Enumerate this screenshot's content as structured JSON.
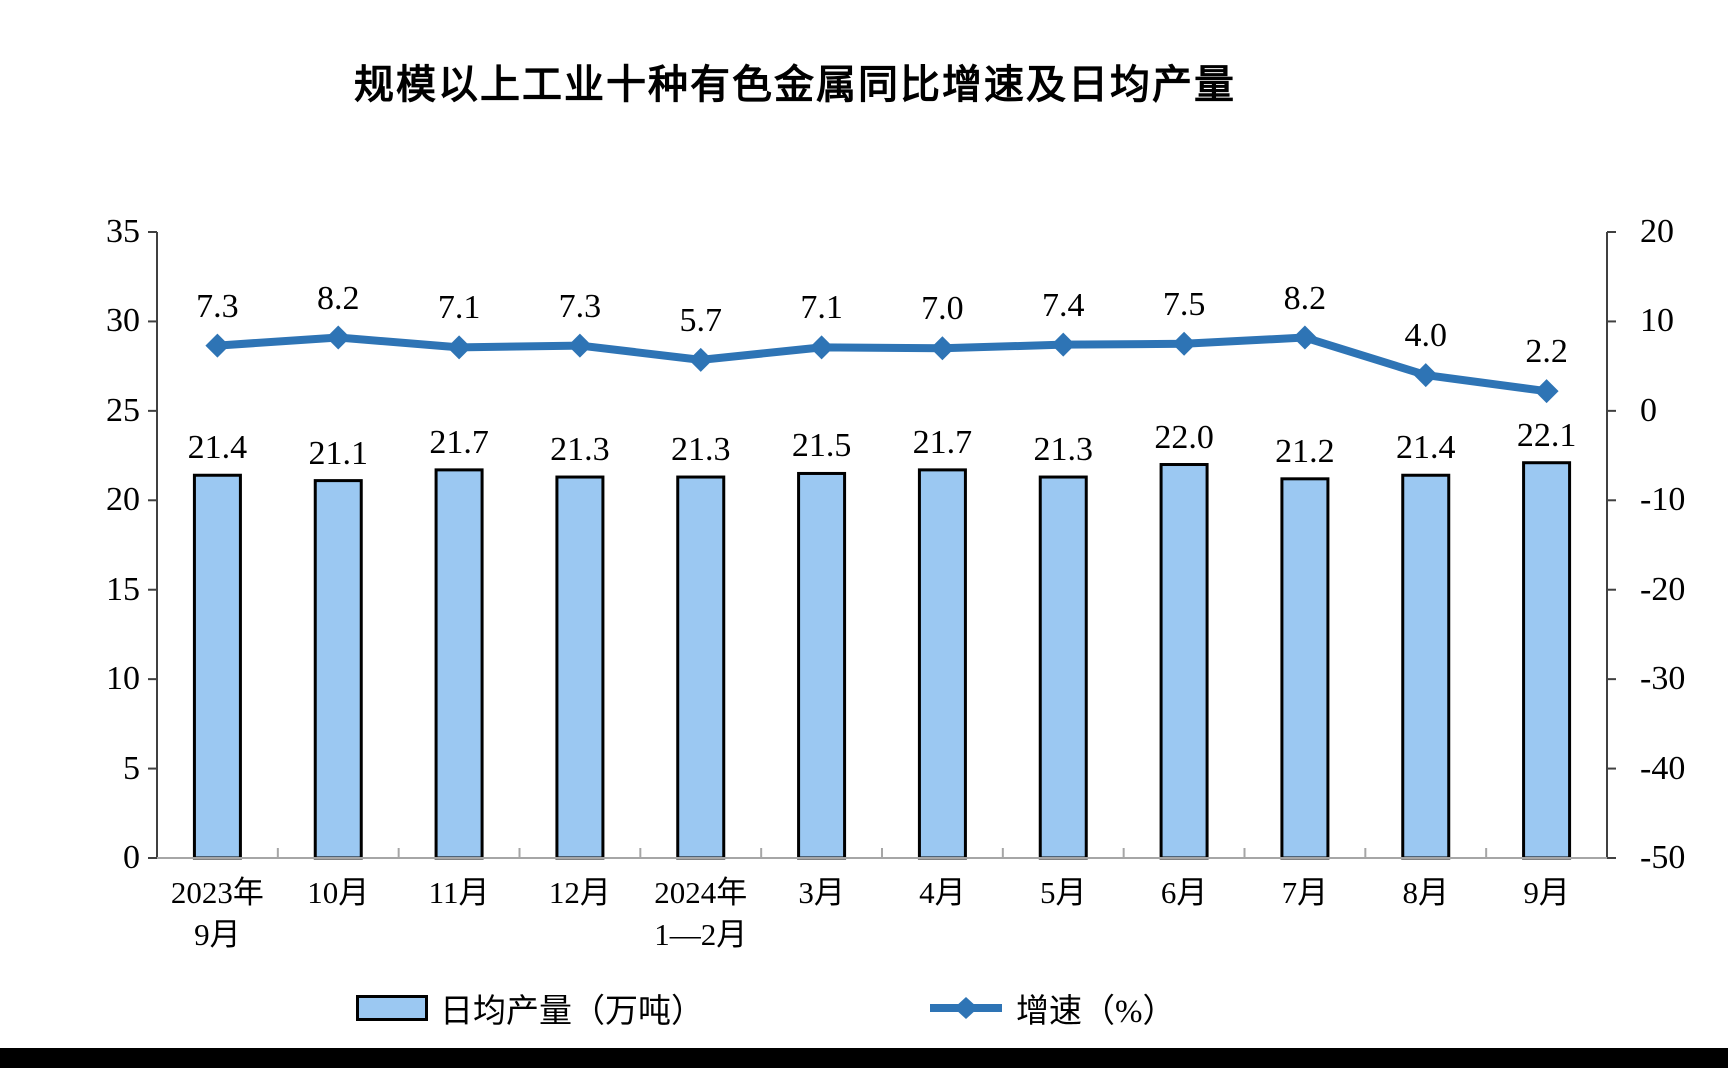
{
  "chart_data": {
    "type": "combo",
    "title": "规模以上工业十种有色金属同比增速及日均产量",
    "categories": [
      "2023年\n9月",
      "10月",
      "11月",
      "12月",
      "2024年\n1—2月",
      "3月",
      "4月",
      "5月",
      "6月",
      "7月",
      "8月",
      "9月"
    ],
    "series": [
      {
        "name": "日均产量（万吨）",
        "type": "bar",
        "axis": "left",
        "values": [
          21.4,
          21.1,
          21.7,
          21.3,
          21.3,
          21.5,
          21.7,
          21.3,
          22.0,
          21.2,
          21.4,
          22.1
        ]
      },
      {
        "name": "增速（%）",
        "type": "line",
        "axis": "right",
        "marker": "diamond",
        "values": [
          7.3,
          8.2,
          7.1,
          7.3,
          5.7,
          7.1,
          7.0,
          7.4,
          7.5,
          8.2,
          4.0,
          2.2
        ]
      }
    ],
    "left_axis": {
      "min": 0,
      "max": 35,
      "step": 5,
      "ticks": [
        35,
        30,
        25,
        20,
        15,
        10,
        5,
        0
      ]
    },
    "right_axis": {
      "min": -50,
      "max": 20,
      "step": 10,
      "ticks": [
        20,
        10,
        0,
        -10,
        -20,
        -30,
        -40,
        -50
      ]
    },
    "grid": false,
    "data_labels": true,
    "legend_position": "bottom"
  },
  "colors": {
    "bar_fill": "#9BC8F2",
    "bar_border": "#000000",
    "line": "#2E74B5",
    "axis": "#404040",
    "baseline": "#A6A6A6",
    "text": "#000000",
    "footer_bar": "#000000"
  }
}
